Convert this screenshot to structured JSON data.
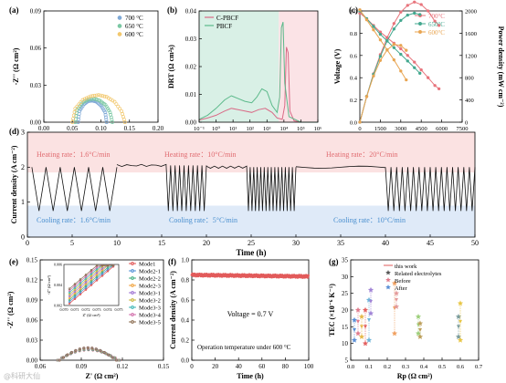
{
  "chart_data": [
    {
      "panel": "(a)",
      "type": "scatter",
      "xlabel": "Z' (Ω cm²)",
      "ylabel": "-Z'' (Ω cm²)",
      "xlim": [
        0,
        0.2
      ],
      "ylim": [
        0,
        0.09
      ],
      "xticks": [
        0.0,
        0.05,
        0.1,
        0.15,
        0.2
      ],
      "yticks": [
        0.0,
        0.03,
        0.06,
        0.09
      ],
      "legend": "top-right",
      "series": [
        {
          "name": "700 °C",
          "color": "#7fa9d6",
          "x": [
            0.06,
            0.0625,
            0.07,
            0.0775,
            0.085,
            0.0925,
            0.1,
            0.1075,
            0.11
          ],
          "y": [
            0,
            0.009,
            0.0145,
            0.017,
            0.0175,
            0.0165,
            0.0135,
            0.008,
            0
          ]
        },
        {
          "name": "650 °C",
          "color": "#7bc8a4",
          "x": [
            0.055,
            0.058,
            0.068,
            0.078,
            0.088,
            0.098,
            0.108,
            0.116,
            0.12
          ],
          "y": [
            0,
            0.01,
            0.016,
            0.0185,
            0.019,
            0.0175,
            0.014,
            0.008,
            0
          ]
        },
        {
          "name": "600 °C",
          "color": "#f2c86e",
          "x": [
            0.05,
            0.055,
            0.068,
            0.082,
            0.096,
            0.11,
            0.124,
            0.136,
            0.142
          ],
          "y": [
            0,
            0.011,
            0.018,
            0.021,
            0.022,
            0.0205,
            0.0165,
            0.009,
            0
          ]
        }
      ]
    },
    {
      "panel": "(b)",
      "type": "line",
      "xlabel": "Frequency (Hz)",
      "ylabel": "DRT (Ω cm²s)",
      "xscale": "log",
      "xlim_exp": [
        -1,
        6
      ],
      "ylim": [
        0,
        0.04
      ],
      "yticks": [
        0.0,
        0.01,
        0.02,
        0.03,
        0.04
      ],
      "xticks": [
        "10⁻¹",
        "10⁰",
        "10¹",
        "10²",
        "10³",
        "10⁴",
        "10⁵",
        "10⁶"
      ],
      "legend": "top-left",
      "shaded_regions": [
        {
          "from_exp": -1,
          "to_exp": 3.7,
          "color": "#d9f0e6"
        },
        {
          "from_exp": 3.7,
          "to_exp": 6,
          "color": "#fbe3e6"
        }
      ],
      "series": [
        {
          "name": "C-PBCF",
          "color": "#d96a86",
          "xexp": [
            -1,
            -0.5,
            0,
            0.5,
            0.9,
            1.3,
            1.7,
            2.1,
            2.5,
            2.9,
            3.3,
            3.6,
            3.9,
            4.05,
            4.15,
            4.25,
            4.35,
            4.6,
            5,
            6
          ],
          "y": [
            0.0008,
            0.0015,
            0.0025,
            0.004,
            0.005,
            0.0045,
            0.004,
            0.0035,
            0.0045,
            0.005,
            0.0035,
            0.0015,
            0.001,
            0.006,
            0.027,
            0.025,
            0.004,
            0.0005,
            0,
            0
          ]
        },
        {
          "name": "PBCF",
          "color": "#5bb98a",
          "xexp": [
            -1,
            -0.5,
            0,
            0.5,
            0.9,
            1.3,
            1.7,
            2.1,
            2.4,
            2.7,
            3.0,
            3.3,
            3.6,
            3.75,
            3.85,
            3.95,
            4.05,
            4.3,
            5,
            6
          ],
          "y": [
            0.001,
            0.0025,
            0.005,
            0.008,
            0.0095,
            0.0085,
            0.0075,
            0.007,
            0.009,
            0.012,
            0.011,
            0.006,
            0.0035,
            0.009,
            0.034,
            0.036,
            0.014,
            0.002,
            0,
            0
          ]
        }
      ]
    },
    {
      "panel": "(c)",
      "type": "line",
      "xlabel": "Current density (mA cm⁻²)",
      "ylabel": "Voltage (V)",
      "y2label": "Power density (mW cm⁻²)",
      "xlim": [
        0,
        7500
      ],
      "ylim": [
        0,
        1.0
      ],
      "y2lim": [
        0,
        2000
      ],
      "xticks": [
        0,
        1500,
        3000,
        4500,
        6000,
        7500
      ],
      "yticks": [
        0.0,
        0.2,
        0.4,
        0.6,
        0.8,
        1.0
      ],
      "y2ticks": [
        0,
        400,
        800,
        1200,
        1600,
        2000
      ],
      "legend": "top-right",
      "series": [
        {
          "name": "700°C",
          "color": "#e8747c",
          "j": [
            0,
            500,
            1000,
            1500,
            2000,
            2500,
            3000,
            3500,
            4000,
            4500,
            5000,
            5500,
            5800
          ],
          "v": [
            0.98,
            0.93,
            0.87,
            0.81,
            0.76,
            0.71,
            0.66,
            0.6,
            0.54,
            0.47,
            0.4,
            0.33,
            0.3
          ]
        },
        {
          "name": "650°C",
          "color": "#43a88f",
          "j": [
            0,
            500,
            1000,
            1500,
            2000,
            2500,
            3000,
            3500,
            4000,
            4400
          ],
          "v": [
            1.0,
            0.93,
            0.86,
            0.79,
            0.73,
            0.67,
            0.61,
            0.55,
            0.49,
            0.44
          ]
        },
        {
          "name": "600°C",
          "color": "#e8a552",
          "j": [
            0,
            500,
            1000,
            1500,
            2000,
            2500,
            3000,
            3400
          ],
          "v": [
            1.01,
            0.92,
            0.83,
            0.74,
            0.65,
            0.56,
            0.46,
            0.38
          ]
        }
      ]
    },
    {
      "panel": "(d)",
      "type": "line",
      "xlabel": "Time (h)",
      "ylabel": "Current density (A cm⁻²)",
      "xlim": [
        0,
        50
      ],
      "ylim": [
        0,
        3
      ],
      "xticks": [
        0,
        5,
        10,
        15,
        20,
        25,
        30,
        35,
        40,
        45,
        50
      ],
      "yticks": [
        0,
        1,
        2,
        3
      ],
      "color": "#111111",
      "annotations": [
        {
          "text": "Heating rate：1.6°C/min",
          "color": "#e06b70"
        },
        {
          "text": "Heating rate：10°C/min",
          "color": "#e06b70"
        },
        {
          "text": "Heating rate：20°C/min",
          "color": "#e06b70"
        },
        {
          "text": "Cooling rate：1.6°C/min",
          "color": "#4a8fcf"
        },
        {
          "text": "Cooling rate：5°C/min",
          "color": "#4a8fcf"
        },
        {
          "text": "Cooling rate：10°C/min",
          "color": "#4a8fcf"
        }
      ],
      "segments": [
        {
          "start": 0.5,
          "end": 10,
          "cycles": 6,
          "high": 2.0,
          "low": 0.75,
          "plateau": 0
        },
        {
          "start": 10,
          "end": 20,
          "cycles": 9,
          "high": 2.05,
          "low": 0.75,
          "plateau": 0.55
        },
        {
          "start": 20,
          "end": 30,
          "cycles": 14,
          "high": 2.0,
          "low": 0.75,
          "plateau": 0.45
        },
        {
          "start": 30,
          "end": 50,
          "cycles": 16,
          "high": 2.0,
          "low": 0.75,
          "plateau": 0.5
        }
      ]
    },
    {
      "panel": "(e)",
      "type": "scatter",
      "xlabel": "Z' (Ω cm²)",
      "ylabel": "-Z'' (Ω cm²)",
      "xlim": [
        0.06,
        0.15
      ],
      "ylim": [
        0,
        0.15
      ],
      "xticks": [
        0.06,
        0.09,
        0.12,
        0.15
      ],
      "yticks": [
        0.0,
        0.03,
        0.06,
        0.09,
        0.12,
        0.15
      ],
      "legend": "top-right",
      "inset": {
        "xlabel": "Z' (Ω cm²)",
        "ylabel": "-Z'' (Ω cm²)",
        "xlim": [
          0.07,
          0.075
        ],
        "ylim": [
          0.002,
          0.006
        ],
        "xticks": [
          0.07,
          0.071,
          0.072,
          0.073,
          0.074,
          0.075
        ],
        "yticks": [
          0.002,
          0.004,
          0.006
        ]
      },
      "series": [
        {
          "name": "Mode1",
          "color": "#e05050"
        },
        {
          "name": "Mode2-1",
          "color": "#4f8fd6"
        },
        {
          "name": "Mode2-2",
          "color": "#3fae7f"
        },
        {
          "name": "Mode2-3",
          "color": "#f0a23c"
        },
        {
          "name": "Mode3-1",
          "color": "#9b6fd1"
        },
        {
          "name": "Mode3-2",
          "color": "#c9b53a"
        },
        {
          "name": "Mode3-3",
          "color": "#3bb5b5"
        },
        {
          "name": "Mode3-4",
          "color": "#d06aa8"
        },
        {
          "name": "Mode3-5",
          "color": "#8a6b4f"
        }
      ]
    },
    {
      "panel": "(f)",
      "type": "line",
      "xlabel": "Time (h)",
      "ylabel": "Current density (A cm⁻²)",
      "xlim": [
        0,
        100
      ],
      "ylim": [
        0,
        1.0
      ],
      "xticks": [
        0,
        20,
        40,
        60,
        80,
        100
      ],
      "yticks": [
        0.0,
        0.2,
        0.4,
        0.6,
        0.8,
        1.0
      ],
      "color": "#e25b5b",
      "level": 0.85,
      "annotations": [
        {
          "text": "Voltage = 0.7 V"
        },
        {
          "text": "Operation temperature under 600 °C"
        }
      ]
    },
    {
      "panel": "(g)",
      "type": "scatter",
      "xlabel": "Rp (Ω cm²)",
      "ylabel": "TEC (×10⁻⁶ K⁻¹)",
      "xlim": [
        0,
        0.7
      ],
      "ylim": [
        5,
        35
      ],
      "xticks": [
        0.0,
        0.1,
        0.2,
        0.3,
        0.4,
        0.5,
        0.6,
        0.7
      ],
      "yticks": [
        5,
        10,
        15,
        20,
        25,
        30,
        35
      ],
      "legend": "top-right",
      "legend_items": [
        "this work",
        "Related electrolytes",
        "Before",
        "After"
      ],
      "groups": [
        {
          "x": 0.02,
          "before": 17,
          "after": 11,
          "color": "#5a8fd6"
        },
        {
          "x": 0.04,
          "before": 20,
          "after": 13,
          "color": "#e07b8d"
        },
        {
          "x": 0.06,
          "before": 18,
          "after": 12,
          "color": "#e6b84a"
        },
        {
          "x": 0.08,
          "before": 20,
          "after": 10,
          "color": "#e36060"
        },
        {
          "x": 0.1,
          "before": 23,
          "after": 11,
          "color": "#6fb5d9"
        },
        {
          "x": 0.11,
          "before": 26,
          "after": 19,
          "color": "#a184d6"
        },
        {
          "x": 0.24,
          "before": 28,
          "after": 13,
          "color": "#f0a060"
        },
        {
          "x": 0.25,
          "before": 25,
          "after": 21,
          "color": "#e39a9a"
        },
        {
          "x": 0.37,
          "before": 18,
          "after": 13,
          "color": "#9ccf7a"
        },
        {
          "x": 0.38,
          "before": 16,
          "after": 12,
          "color": "#bda05c"
        },
        {
          "x": 0.59,
          "before": 18,
          "after": 12,
          "color": "#7a9c9c"
        },
        {
          "x": 0.6,
          "before": 22,
          "after": 11,
          "color": "#e8c646"
        }
      ]
    }
  ],
  "watermark": "@科研大仙"
}
